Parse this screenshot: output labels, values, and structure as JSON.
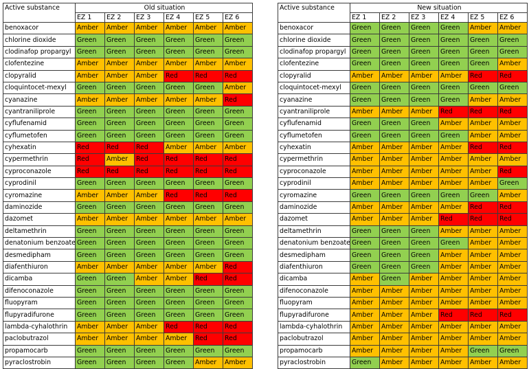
{
  "colors": {
    "Green": "#92d050",
    "Amber": "#ffc000",
    "Red": "#ff0000"
  },
  "zone_labels": [
    "EZ 1",
    "EZ 2",
    "EZ 3",
    "EZ 4",
    "EZ 5",
    "EZ 6"
  ],
  "tables": [
    {
      "header_label": "Active substance",
      "group_title": "Old situation",
      "rows": [
        {
          "substance": "benoxacor",
          "ratings": [
            "Amber",
            "Amber",
            "Amber",
            "Amber",
            "Amber",
            "Amber"
          ]
        },
        {
          "substance": "chlorine dioxide",
          "ratings": [
            "Green",
            "Green",
            "Green",
            "Green",
            "Green",
            "Green"
          ]
        },
        {
          "substance": "clodinafop propargyl",
          "ratings": [
            "Green",
            "Green",
            "Green",
            "Green",
            "Green",
            "Green"
          ]
        },
        {
          "substance": "clofentezine",
          "ratings": [
            "Amber",
            "Amber",
            "Amber",
            "Amber",
            "Amber",
            "Amber"
          ]
        },
        {
          "substance": "clopyralid",
          "ratings": [
            "Amber",
            "Amber",
            "Amber",
            "Red",
            "Red",
            "Red"
          ]
        },
        {
          "substance": "cloquintocet-mexyl",
          "ratings": [
            "Green",
            "Green",
            "Green",
            "Green",
            "Green",
            "Amber"
          ]
        },
        {
          "substance": "cyanazine",
          "ratings": [
            "Amber",
            "Amber",
            "Amber",
            "Amber",
            "Amber",
            "Red"
          ]
        },
        {
          "substance": "cyantraniliprole",
          "ratings": [
            "Green",
            "Green",
            "Green",
            "Green",
            "Green",
            "Green"
          ]
        },
        {
          "substance": "cyflufenamid",
          "ratings": [
            "Green",
            "Green",
            "Green",
            "Green",
            "Green",
            "Green"
          ]
        },
        {
          "substance": "cyflumetofen",
          "ratings": [
            "Green",
            "Green",
            "Green",
            "Green",
            "Green",
            "Green"
          ]
        },
        {
          "substance": "cyhexatin",
          "ratings": [
            "Red",
            "Red",
            "Red",
            "Amber",
            "Amber",
            "Amber"
          ]
        },
        {
          "substance": "cypermethrin",
          "ratings": [
            "Red",
            "Amber",
            "Red",
            "Red",
            "Red",
            "Red"
          ]
        },
        {
          "substance": "cyproconazole",
          "ratings": [
            "Red",
            "Red",
            "Red",
            "Red",
            "Red",
            "Red"
          ]
        },
        {
          "substance": "cyprodinil",
          "ratings": [
            "Green",
            "Green",
            "Green",
            "Green",
            "Green",
            "Green"
          ]
        },
        {
          "substance": "cyromazine",
          "ratings": [
            "Amber",
            "Amber",
            "Amber",
            "Red",
            "Red",
            "Red"
          ]
        },
        {
          "substance": "daminozide",
          "ratings": [
            "Green",
            "Green",
            "Green",
            "Green",
            "Green",
            "Green"
          ]
        },
        {
          "substance": "dazomet",
          "ratings": [
            "Amber",
            "Amber",
            "Amber",
            "Amber",
            "Amber",
            "Amber"
          ]
        },
        {
          "substance": "deltamethrin",
          "ratings": [
            "Green",
            "Green",
            "Green",
            "Green",
            "Green",
            "Green"
          ]
        },
        {
          "substance": "denatonium benzoate",
          "ratings": [
            "Green",
            "Green",
            "Green",
            "Green",
            "Green",
            "Green"
          ]
        },
        {
          "substance": "desmedipham",
          "ratings": [
            "Green",
            "Green",
            "Green",
            "Green",
            "Green",
            "Green"
          ]
        },
        {
          "substance": "diafenthiuron",
          "ratings": [
            "Amber",
            "Amber",
            "Amber",
            "Amber",
            "Amber",
            "Red"
          ]
        },
        {
          "substance": "dicamba",
          "ratings": [
            "Green",
            "Green",
            "Amber",
            "Amber",
            "Red",
            "Red"
          ]
        },
        {
          "substance": "difenoconazole",
          "ratings": [
            "Green",
            "Green",
            "Green",
            "Green",
            "Green",
            "Green"
          ]
        },
        {
          "substance": "fluopyram",
          "ratings": [
            "Green",
            "Green",
            "Green",
            "Green",
            "Green",
            "Green"
          ]
        },
        {
          "substance": "flupyradifurone",
          "ratings": [
            "Green",
            "Green",
            "Green",
            "Green",
            "Green",
            "Green"
          ]
        },
        {
          "substance": "lambda-cyhalothrin",
          "ratings": [
            "Amber",
            "Amber",
            "Amber",
            "Red",
            "Red",
            "Red"
          ]
        },
        {
          "substance": "paclobutrazol",
          "ratings": [
            "Amber",
            "Amber",
            "Amber",
            "Amber",
            "Red",
            "Red"
          ]
        },
        {
          "substance": "propamocarb",
          "ratings": [
            "Green",
            "Green",
            "Green",
            "Green",
            "Green",
            "Green"
          ]
        },
        {
          "substance": "pyraclostrobin",
          "ratings": [
            "Green",
            "Green",
            "Green",
            "Green",
            "Amber",
            "Amber"
          ]
        }
      ]
    },
    {
      "header_label": "Active substance",
      "group_title": "New situation",
      "rows": [
        {
          "substance": "benoxacor",
          "ratings": [
            "Green",
            "Green",
            "Green",
            "Green",
            "Amber",
            "Amber"
          ]
        },
        {
          "substance": "chlorine dioxide",
          "ratings": [
            "Green",
            "Green",
            "Green",
            "Green",
            "Green",
            "Green"
          ]
        },
        {
          "substance": "clodinafop propargyl",
          "ratings": [
            "Green",
            "Green",
            "Green",
            "Green",
            "Green",
            "Green"
          ]
        },
        {
          "substance": "clofentezine",
          "ratings": [
            "Green",
            "Green",
            "Green",
            "Green",
            "Green",
            "Amber"
          ]
        },
        {
          "substance": "clopyralid",
          "ratings": [
            "Amber",
            "Amber",
            "Amber",
            "Amber",
            "Red",
            "Red"
          ]
        },
        {
          "substance": "cloquintocet-mexyl",
          "ratings": [
            "Green",
            "Green",
            "Green",
            "Green",
            "Green",
            "Green"
          ]
        },
        {
          "substance": "cyanazine",
          "ratings": [
            "Green",
            "Green",
            "Green",
            "Green",
            "Amber",
            "Amber"
          ]
        },
        {
          "substance": "cyantraniliprole",
          "ratings": [
            "Amber",
            "Amber",
            "Amber",
            "Red",
            "Red",
            "Red"
          ]
        },
        {
          "substance": "cyflufenamid",
          "ratings": [
            "Green",
            "Green",
            "Green",
            "Amber",
            "Amber",
            "Amber"
          ]
        },
        {
          "substance": "cyflumetofen",
          "ratings": [
            "Green",
            "Green",
            "Green",
            "Green",
            "Amber",
            "Amber"
          ]
        },
        {
          "substance": "cyhexatin",
          "ratings": [
            "Amber",
            "Amber",
            "Amber",
            "Amber",
            "Red",
            "Red"
          ]
        },
        {
          "substance": "cypermethrin",
          "ratings": [
            "Amber",
            "Amber",
            "Amber",
            "Amber",
            "Amber",
            "Amber"
          ]
        },
        {
          "substance": "cyproconazole",
          "ratings": [
            "Amber",
            "Amber",
            "Amber",
            "Amber",
            "Amber",
            "Red"
          ]
        },
        {
          "substance": "cyprodinil",
          "ratings": [
            "Amber",
            "Amber",
            "Amber",
            "Amber",
            "Amber",
            "Green"
          ]
        },
        {
          "substance": "cyromazine",
          "ratings": [
            "Green",
            "Green",
            "Green",
            "Green",
            "Green",
            "Amber"
          ]
        },
        {
          "substance": "daminozide",
          "ratings": [
            "Amber",
            "Amber",
            "Amber",
            "Amber",
            "Red",
            "Red"
          ]
        },
        {
          "substance": "dazomet",
          "ratings": [
            "Amber",
            "Amber",
            "Amber",
            "Red",
            "Red",
            "Red"
          ]
        },
        {
          "substance": "deltamethrin",
          "ratings": [
            "Green",
            "Green",
            "Green",
            "Amber",
            "Amber",
            "Amber"
          ]
        },
        {
          "substance": "denatonium benzoate",
          "ratings": [
            "Green",
            "Green",
            "Green",
            "Green",
            "Amber",
            "Amber"
          ]
        },
        {
          "substance": "desmedipham",
          "ratings": [
            "Green",
            "Green",
            "Green",
            "Amber",
            "Amber",
            "Amber"
          ]
        },
        {
          "substance": "diafenthiuron",
          "ratings": [
            "Green",
            "Green",
            "Green",
            "Amber",
            "Amber",
            "Amber"
          ]
        },
        {
          "substance": "dicamba",
          "ratings": [
            "Amber",
            "Green",
            "Amber",
            "Amber",
            "Amber",
            "Amber"
          ]
        },
        {
          "substance": "difenoconazole",
          "ratings": [
            "Amber",
            "Amber",
            "Amber",
            "Amber",
            "Amber",
            "Amber"
          ]
        },
        {
          "substance": "fluopyram",
          "ratings": [
            "Amber",
            "Amber",
            "Amber",
            "Amber",
            "Amber",
            "Amber"
          ]
        },
        {
          "substance": "flupyradifurone",
          "ratings": [
            "Amber",
            "Amber",
            "Amber",
            "Red",
            "Red",
            "Red"
          ]
        },
        {
          "substance": "lambda-cyhalothrin",
          "ratings": [
            "Amber",
            "Amber",
            "Amber",
            "Amber",
            "Amber",
            "Amber"
          ]
        },
        {
          "substance": "paclobutrazol",
          "ratings": [
            "Amber",
            "Amber",
            "Amber",
            "Amber",
            "Amber",
            "Amber"
          ]
        },
        {
          "substance": "propamocarb",
          "ratings": [
            "Amber",
            "Amber",
            "Amber",
            "Amber",
            "Green",
            "Green"
          ]
        },
        {
          "substance": "pyraclostrobin",
          "ratings": [
            "Green",
            "Amber",
            "Amber",
            "Amber",
            "Amber",
            "Amber"
          ]
        }
      ]
    }
  ]
}
